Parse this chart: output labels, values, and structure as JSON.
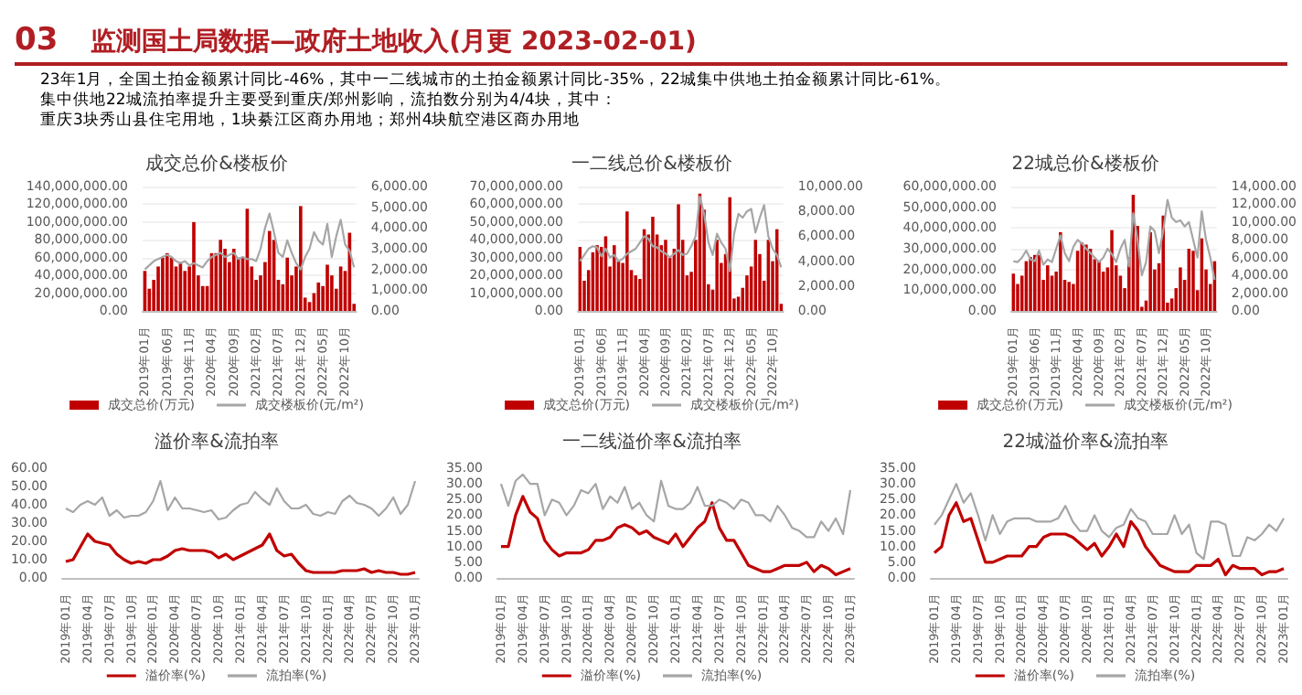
{
  "chart_data": [
    {
      "type": "other",
      "subtitle": "03",
      "title": "监测国土局数据—政府土地收入(月更 2023-02-01)",
      "annotations": [
        "23年1月，全国土拍金额累计同比-46%，其中一二线城市的土拍金额累计同比-35%，22城集中供地土拍金额累计同比-61%。",
        "集中供地22城流拍率提升主要受到重庆/郑州影响，流拍数分别为4/4块，其中：",
        "重庆3块秀山县住宅用地，1块綦江区商办用地；郑州4块航空港区商办用地"
      ]
    },
    {
      "type": "bar",
      "title": "成交总价&楼板价",
      "legend": "bottom",
      "grid": "y",
      "marker": "none",
      "categories": [
        "2019年01月",
        null,
        null,
        null,
        null,
        "2019年06月",
        null,
        null,
        null,
        null,
        "2019年11月",
        null,
        null,
        null,
        null,
        "2020年04月",
        null,
        null,
        null,
        null,
        "2020年09月",
        null,
        null,
        null,
        null,
        "2021年02月",
        null,
        null,
        null,
        null,
        "2021年07月",
        null,
        null,
        null,
        null,
        "2021年12月",
        null,
        null,
        null,
        null,
        "2022年05月",
        null,
        null,
        null,
        null,
        "2022年10月",
        null,
        null
      ],
      "ylim": [
        0,
        140000000
      ],
      "yticks": [
        {
          "value": 0,
          "label": "0.00"
        },
        {
          "value": 20000000,
          "label": "20,000,000.00"
        },
        {
          "value": 40000000,
          "label": "40,000,000.00"
        },
        {
          "value": 60000000,
          "label": "60,000,000.00"
        },
        {
          "value": 80000000,
          "label": "80,000,000.00"
        },
        {
          "value": 100000000,
          "label": "100,000,000.00"
        },
        {
          "value": 120000000,
          "label": "120,000,000.00"
        },
        {
          "value": 140000000,
          "label": "140,000,000.00"
        }
      ],
      "y2lim": [
        0,
        6000
      ],
      "y2ticks": [
        {
          "value": 0,
          "label": "0.00"
        },
        {
          "value": 1000,
          "label": "1,000.00"
        },
        {
          "value": 2000,
          "label": "2,000.00"
        },
        {
          "value": 3000,
          "label": "3,000.00"
        },
        {
          "value": 4000,
          "label": "4,000.00"
        },
        {
          "value": 5000,
          "label": "5,000.00"
        },
        {
          "value": 6000,
          "label": "6,000.00"
        }
      ],
      "series": [
        {
          "name": "成交总价(万元)",
          "type": "bar",
          "color": "#c00000",
          "values": [
            45000000,
            25000000,
            35000000,
            50000000,
            60000000,
            65000000,
            60000000,
            50000000,
            55000000,
            45000000,
            50000000,
            100000000,
            40000000,
            28000000,
            28000000,
            65000000,
            65000000,
            80000000,
            70000000,
            55000000,
            70000000,
            60000000,
            60000000,
            115000000,
            50000000,
            35000000,
            40000000,
            55000000,
            90000000,
            80000000,
            35000000,
            30000000,
            60000000,
            40000000,
            50000000,
            118000000,
            15000000,
            10000000,
            20000000,
            32000000,
            28000000,
            52000000,
            40000000,
            25000000,
            50000000,
            45000000,
            88000000,
            8000000
          ]
        },
        {
          "name": "成交楼板价(元/m²)",
          "type": "line",
          "axis": "y2",
          "color": "#a6a6a6",
          "values": [
            2000,
            2200,
            2400,
            2500,
            2600,
            2700,
            2600,
            2400,
            2300,
            2400,
            2200,
            2300,
            2200,
            2100,
            2400,
            2600,
            2700,
            2800,
            2600,
            2700,
            2800,
            2500,
            2600,
            2500,
            2500,
            2400,
            3000,
            4000,
            4700,
            3800,
            2800,
            2600,
            3400,
            2800,
            2300,
            2000,
            2600,
            3000,
            3800,
            3400,
            3200,
            4200,
            2600,
            3600,
            4400,
            3200,
            2900,
            2100
          ]
        }
      ]
    },
    {
      "type": "bar",
      "title": "一二线总价&楼板价",
      "legend": "bottom",
      "grid": "y",
      "marker": "none",
      "categories": [
        "2019年01月",
        null,
        null,
        null,
        null,
        "2019年06月",
        null,
        null,
        null,
        null,
        "2019年11月",
        null,
        null,
        null,
        null,
        "2020年04月",
        null,
        null,
        null,
        null,
        "2020年09月",
        null,
        null,
        null,
        null,
        "2021年02月",
        null,
        null,
        null,
        null,
        "2021年07月",
        null,
        null,
        null,
        null,
        "2021年12月",
        null,
        null,
        null,
        null,
        "2022年05月",
        null,
        null,
        null,
        null,
        "2022年10月",
        null,
        null
      ],
      "ylim": [
        0,
        70000000
      ],
      "yticks": [
        {
          "value": 0,
          "label": "0.00"
        },
        {
          "value": 10000000,
          "label": "10,000,000.00"
        },
        {
          "value": 20000000,
          "label": "20,000,000.00"
        },
        {
          "value": 30000000,
          "label": "30,000,000.00"
        },
        {
          "value": 40000000,
          "label": "40,000,000.00"
        },
        {
          "value": 50000000,
          "label": "50,000,000.00"
        },
        {
          "value": 60000000,
          "label": "60,000,000.00"
        },
        {
          "value": 70000000,
          "label": "70,000,000.00"
        }
      ],
      "y2lim": [
        0,
        10000
      ],
      "y2ticks": [
        {
          "value": 0,
          "label": "0.00"
        },
        {
          "value": 2000,
          "label": "2,000.00"
        },
        {
          "value": 4000,
          "label": "4,000.00"
        },
        {
          "value": 6000,
          "label": "6,000.00"
        },
        {
          "value": 8000,
          "label": "8,000.00"
        },
        {
          "value": 10000,
          "label": "10,000.00"
        }
      ],
      "series": [
        {
          "name": "成交总价(万元)",
          "type": "bar",
          "color": "#c00000",
          "values": [
            36000000,
            17000000,
            23000000,
            33000000,
            37000000,
            36000000,
            42000000,
            25000000,
            37000000,
            28000000,
            27000000,
            56000000,
            23000000,
            20000000,
            18000000,
            46000000,
            43000000,
            53000000,
            43000000,
            37000000,
            40000000,
            30000000,
            35000000,
            60000000,
            40000000,
            20000000,
            22000000,
            40000000,
            66000000,
            57000000,
            15000000,
            12000000,
            40000000,
            27000000,
            32000000,
            64000000,
            7000000,
            8000000,
            13000000,
            20000000,
            25000000,
            40000000,
            32000000,
            17000000,
            40000000,
            28000000,
            46000000,
            4000000
          ]
        },
        {
          "name": "成交楼板价(元/m²)",
          "type": "line",
          "axis": "y2",
          "color": "#a6a6a6",
          "values": [
            4000,
            4500,
            5000,
            5200,
            5100,
            4400,
            5000,
            4300,
            4500,
            4000,
            4200,
            4600,
            4800,
            5000,
            5500,
            6000,
            5800,
            5200,
            5100,
            4800,
            4600,
            4300,
            4600,
            4900,
            4500,
            4600,
            5200,
            6000,
            9200,
            7800,
            5500,
            4500,
            6200,
            5500,
            5000,
            3200,
            6200,
            7800,
            7500,
            8000,
            8200,
            6300,
            7500,
            8500,
            6000,
            5000,
            4500,
            3500
          ]
        }
      ]
    },
    {
      "type": "bar",
      "title": "22城总价&楼板价",
      "legend": "bottom",
      "grid": "y",
      "marker": "none",
      "categories": [
        "2019年01月",
        null,
        null,
        null,
        null,
        "2019年06月",
        null,
        null,
        null,
        null,
        "2019年11月",
        null,
        null,
        null,
        null,
        "2020年04月",
        null,
        null,
        null,
        null,
        "2020年09月",
        null,
        null,
        null,
        null,
        "2021年02月",
        null,
        null,
        null,
        null,
        "2021年07月",
        null,
        null,
        null,
        null,
        "2021年12月",
        null,
        null,
        null,
        null,
        "2022年05月",
        null,
        null,
        null,
        null,
        "2022年10月",
        null,
        null
      ],
      "ylim": [
        0,
        60000000
      ],
      "yticks": [
        {
          "value": 0,
          "label": "0.00"
        },
        {
          "value": 10000000,
          "label": "10,000,000.00"
        },
        {
          "value": 20000000,
          "label": "20,000,000.00"
        },
        {
          "value": 30000000,
          "label": "30,000,000.00"
        },
        {
          "value": 40000000,
          "label": "40,000,000.00"
        },
        {
          "value": 50000000,
          "label": "50,000,000.00"
        },
        {
          "value": 60000000,
          "label": "60,000,000.00"
        }
      ],
      "y2lim": [
        0,
        14000
      ],
      "y2ticks": [
        {
          "value": 0,
          "label": "0.00"
        },
        {
          "value": 2000,
          "label": "2,000.00"
        },
        {
          "value": 4000,
          "label": "4,000.00"
        },
        {
          "value": 6000,
          "label": "6,000.00"
        },
        {
          "value": 8000,
          "label": "8,000.00"
        },
        {
          "value": 10000,
          "label": "10,000.00"
        },
        {
          "value": 12000,
          "label": "12,000.00"
        },
        {
          "value": 14000,
          "label": "14,000.00"
        }
      ],
      "series": [
        {
          "name": "成交总价(万元)",
          "type": "bar",
          "color": "#c00000",
          "values": [
            18000000,
            13000000,
            17000000,
            24000000,
            26000000,
            27000000,
            27000000,
            15000000,
            22000000,
            17000000,
            19000000,
            38000000,
            15000000,
            14000000,
            13000000,
            29000000,
            33000000,
            32000000,
            30000000,
            25000000,
            24000000,
            19000000,
            21000000,
            39000000,
            22000000,
            17000000,
            11000000,
            26000000,
            56000000,
            41000000,
            2000000,
            5000000,
            38000000,
            20000000,
            23000000,
            46000000,
            4000000,
            6000000,
            11000000,
            21000000,
            15000000,
            30000000,
            29000000,
            10000000,
            35000000,
            20000000,
            13000000,
            24000000
          ]
        },
        {
          "name": "成交楼板价(元/m²)",
          "type": "line",
          "axis": "y2",
          "color": "#a6a6a6",
          "values": [
            5600,
            5500,
            6000,
            6800,
            5800,
            5600,
            6800,
            5200,
            5800,
            5500,
            7000,
            8500,
            6500,
            5600,
            7200,
            8000,
            7600,
            7000,
            6500,
            6000,
            5500,
            6000,
            7000,
            6400,
            5500,
            7000,
            8000,
            5000,
            11000,
            8000,
            4000,
            5500,
            9500,
            9000,
            6500,
            9000,
            12500,
            10500,
            10000,
            10200,
            9500,
            10000,
            8000,
            6000,
            11200,
            8000,
            6000,
            3500
          ]
        }
      ]
    },
    {
      "type": "line",
      "title": "溢价率&流拍率",
      "legend": "bottom",
      "marker": "none",
      "categories": [
        "2019年01月",
        null,
        null,
        "2019年04月",
        null,
        null,
        "2019年07月",
        null,
        null,
        "2019年10月",
        null,
        null,
        "2020年01月",
        null,
        null,
        "2020年04月",
        null,
        null,
        "2020年07月",
        null,
        null,
        "2020年10月",
        null,
        null,
        "2021年01月",
        null,
        null,
        "2021年04月",
        null,
        null,
        "2021年07月",
        null,
        null,
        "2021年10月",
        null,
        null,
        "2022年01月",
        null,
        null,
        "2022年04月",
        null,
        null,
        "2022年07月",
        null,
        null,
        "2022年10月",
        null,
        null,
        "2023年01月"
      ],
      "ylim": [
        0,
        60
      ],
      "yticks": [
        {
          "value": 0,
          "label": "0.00"
        },
        {
          "value": 10,
          "label": "10.00"
        },
        {
          "value": 20,
          "label": "20.00"
        },
        {
          "value": 30,
          "label": "30.00"
        },
        {
          "value": 40,
          "label": "40.00"
        },
        {
          "value": 50,
          "label": "50.00"
        },
        {
          "value": 60,
          "label": "60.00"
        }
      ],
      "series": [
        {
          "name": "溢价率(%)",
          "color": "#c00000",
          "values": [
            9,
            10,
            17,
            24,
            20,
            19,
            18,
            13,
            10,
            8,
            9,
            8,
            10,
            10,
            12,
            15,
            16,
            15,
            15,
            15,
            14,
            11,
            13,
            10,
            12,
            14,
            16,
            18,
            24,
            15,
            12,
            13,
            8,
            4,
            3,
            3,
            3,
            3,
            4,
            4,
            4,
            5,
            3,
            4,
            3,
            3,
            2,
            2,
            3
          ]
        },
        {
          "name": "流拍率(%)",
          "color": "#a6a6a6",
          "values": [
            38,
            36,
            40,
            42,
            40,
            44,
            34,
            37,
            33,
            34,
            34,
            36,
            42,
            53,
            37,
            44,
            38,
            38,
            37,
            36,
            37,
            32,
            33,
            37,
            40,
            41,
            47,
            43,
            40,
            49,
            42,
            38,
            38,
            40,
            35,
            34,
            36,
            35,
            42,
            45,
            41,
            40,
            38,
            34,
            38,
            44,
            35,
            40,
            53
          ]
        }
      ]
    },
    {
      "type": "line",
      "title": "一二线溢价率&流拍率",
      "legend": "bottom",
      "marker": "none",
      "categories": [
        "2019年01月",
        null,
        null,
        "2019年04月",
        null,
        null,
        "2019年07月",
        null,
        null,
        "2019年10月",
        null,
        null,
        "2020年01月",
        null,
        null,
        "2020年04月",
        null,
        null,
        "2020年07月",
        null,
        null,
        "2020年10月",
        null,
        null,
        "2021年01月",
        null,
        null,
        "2021年04月",
        null,
        null,
        "2021年07月",
        null,
        null,
        "2021年10月",
        null,
        null,
        "2022年01月",
        null,
        null,
        "2022年04月",
        null,
        null,
        "2022年07月",
        null,
        null,
        "2022年10月",
        null,
        null,
        "2023年01月"
      ],
      "ylim": [
        0,
        35
      ],
      "yticks": [
        {
          "value": 0,
          "label": "0.00"
        },
        {
          "value": 5,
          "label": "5.00"
        },
        {
          "value": 10,
          "label": "10.00"
        },
        {
          "value": 15,
          "label": "15.00"
        },
        {
          "value": 20,
          "label": "20.00"
        },
        {
          "value": 25,
          "label": "25.00"
        },
        {
          "value": 30,
          "label": "30.00"
        },
        {
          "value": 35,
          "label": "35.00"
        }
      ],
      "series": [
        {
          "name": "溢价率(%)",
          "color": "#c00000",
          "values": [
            10,
            10,
            20,
            26,
            21,
            19,
            12,
            9,
            7,
            8,
            8,
            8,
            9,
            12,
            12,
            13,
            16,
            17,
            16,
            14,
            15,
            13,
            12,
            11,
            14,
            10,
            13,
            16,
            18,
            24,
            16,
            12,
            12,
            8,
            4,
            3,
            2,
            2,
            3,
            4,
            4,
            4,
            5,
            2,
            4,
            3,
            1,
            2,
            3
          ]
        },
        {
          "name": "流拍率(%)",
          "color": "#a6a6a6",
          "values": [
            30,
            23,
            31,
            33,
            30,
            30,
            20,
            25,
            24,
            20,
            23,
            28,
            27,
            30,
            22,
            26,
            24,
            29,
            22,
            24,
            20,
            18,
            31,
            23,
            22,
            22,
            24,
            29,
            23,
            23,
            25,
            24,
            22,
            25,
            24,
            20,
            20,
            18,
            23,
            20,
            16,
            15,
            13,
            13,
            18,
            15,
            19,
            14,
            28
          ]
        }
      ]
    },
    {
      "type": "line",
      "title": "22城溢价率&流拍率",
      "legend": "bottom",
      "marker": "none",
      "categories": [
        "2019年01月",
        null,
        null,
        "2019年04月",
        null,
        null,
        "2019年07月",
        null,
        null,
        "2019年10月",
        null,
        null,
        "2020年01月",
        null,
        null,
        "2020年04月",
        null,
        null,
        "2020年07月",
        null,
        null,
        "2020年10月",
        null,
        null,
        "2021年01月",
        null,
        null,
        "2021年04月",
        null,
        null,
        "2021年07月",
        null,
        null,
        "2021年10月",
        null,
        null,
        "2022年01月",
        null,
        null,
        "2022年04月",
        null,
        null,
        "2022年07月",
        null,
        null,
        "2022年10月",
        null,
        null,
        "2023年01月"
      ],
      "ylim": [
        0,
        35
      ],
      "yticks": [
        {
          "value": 0,
          "label": "0.00"
        },
        {
          "value": 5,
          "label": "5.00"
        },
        {
          "value": 10,
          "label": "10.00"
        },
        {
          "value": 15,
          "label": "15.00"
        },
        {
          "value": 20,
          "label": "20.00"
        },
        {
          "value": 25,
          "label": "25.00"
        },
        {
          "value": 30,
          "label": "30.00"
        },
        {
          "value": 35,
          "label": "35.00"
        }
      ],
      "series": [
        {
          "name": "溢价率(%)",
          "color": "#c00000",
          "values": [
            8,
            10,
            20,
            24,
            18,
            19,
            12,
            5,
            5,
            6,
            7,
            7,
            7,
            10,
            10,
            13,
            14,
            14,
            14,
            13,
            11,
            9,
            11,
            7,
            10,
            14,
            10,
            18,
            15,
            10,
            7,
            4,
            3,
            2,
            2,
            2,
            4,
            4,
            4,
            6,
            1,
            4,
            3,
            3,
            3,
            1,
            2,
            2,
            3
          ]
        },
        {
          "name": "流拍率(%)",
          "color": "#a6a6a6",
          "values": [
            17,
            20,
            25,
            30,
            24,
            27,
            20,
            12,
            20,
            14,
            18,
            19,
            19,
            19,
            18,
            18,
            18,
            19,
            23,
            18,
            15,
            15,
            20,
            15,
            13,
            16,
            17,
            22,
            19,
            18,
            14,
            14,
            14,
            20,
            14,
            17,
            8,
            6,
            18,
            18,
            17,
            7,
            7,
            13,
            12,
            14,
            17,
            15,
            19
          ]
        }
      ]
    }
  ]
}
